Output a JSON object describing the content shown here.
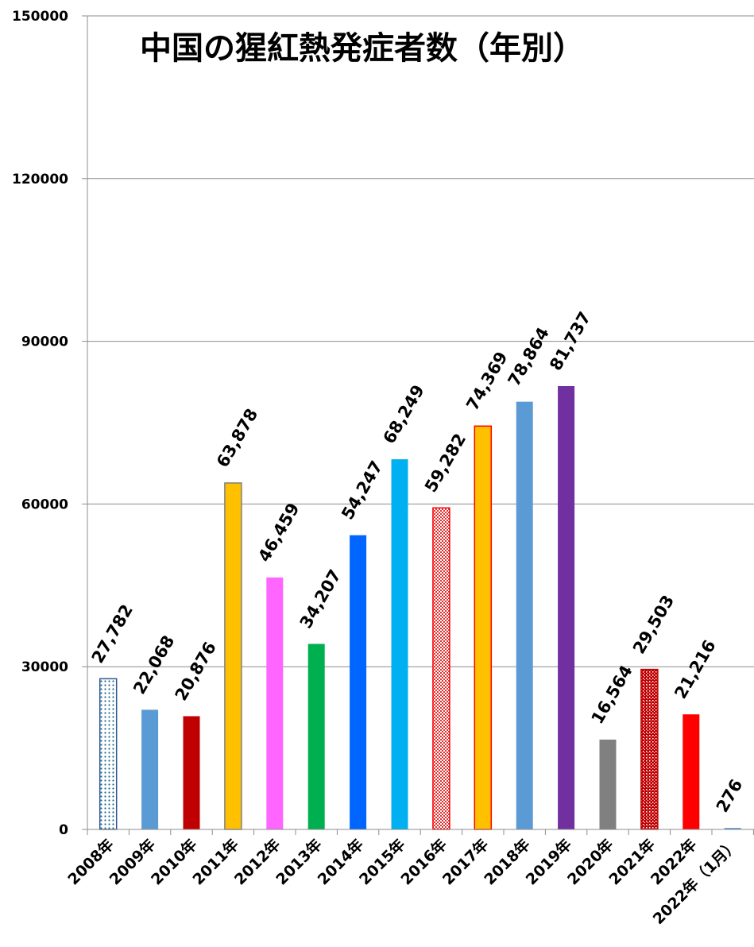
{
  "chart_data": {
    "type": "bar",
    "title": "中国の猩紅熱発症者数（年別）",
    "xlabel": "",
    "ylabel": "",
    "ylim": [
      0,
      150000
    ],
    "yticks": [
      0,
      30000,
      60000,
      90000,
      120000,
      150000
    ],
    "ytick_labels": [
      "0",
      "30000",
      "60000",
      "90000",
      "120000",
      "150000"
    ],
    "grid": true,
    "legend": "none",
    "categories": [
      "2008年",
      "2009年",
      "2010年",
      "2011年",
      "2012年",
      "2013年",
      "2014年",
      "2015年",
      "2016年",
      "2017年",
      "2018年",
      "2019年",
      "2020年",
      "2021年",
      "2022年",
      "2022年（1月）"
    ],
    "values": [
      27782,
      22068,
      20876,
      63878,
      46459,
      34207,
      54247,
      68249,
      59282,
      74369,
      78864,
      81737,
      16564,
      29503,
      21216,
      276
    ],
    "value_labels": [
      "27,782",
      "22,068",
      "20,876",
      "63,878",
      "46,459",
      "34,207",
      "54,247",
      "68,249",
      "59,282",
      "74,369",
      "78,864",
      "81,737",
      "16,564",
      "29,503",
      "21,216",
      "276"
    ],
    "bar_styles": [
      {
        "fill": "#FFFFFF",
        "pattern": "dots",
        "pattern_color": "#1F6B8E",
        "stroke": "#2F5597"
      },
      {
        "fill": "#5B9BD5"
      },
      {
        "fill": "#C00000"
      },
      {
        "fill": "#FFC000",
        "stroke": "#7F7F7F"
      },
      {
        "fill": "#FF66FF"
      },
      {
        "fill": "#00B050"
      },
      {
        "fill": "#0066FF"
      },
      {
        "fill": "#00B0F0"
      },
      {
        "fill": "#FFFFFF",
        "pattern": "fine",
        "pattern_color": "#E03030",
        "stroke": "#FF0000"
      },
      {
        "fill": "#FFC000",
        "stroke": "#FF0000"
      },
      {
        "fill": "#5B9BD5"
      },
      {
        "fill": "#7030A0"
      },
      {
        "fill": "#808080"
      },
      {
        "fill": "#FFFFFF",
        "pattern": "dense",
        "pattern_color": "#C00000",
        "stroke": "#C00000"
      },
      {
        "fill": "#FF0000"
      },
      {
        "fill": "#5B9BD5"
      }
    ]
  }
}
